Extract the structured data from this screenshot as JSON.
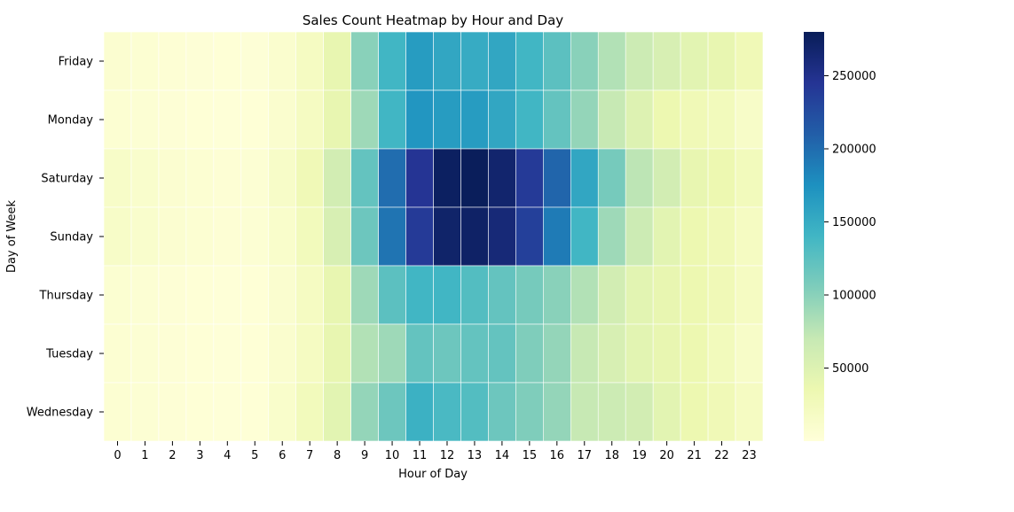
{
  "chart_data": {
    "type": "heatmap",
    "title": "Sales Count Heatmap by Hour and Day",
    "xlabel": "Hour of Day",
    "ylabel": "Day of Week",
    "x_categories": [
      "0",
      "1",
      "2",
      "3",
      "4",
      "5",
      "6",
      "7",
      "8",
      "9",
      "10",
      "11",
      "12",
      "13",
      "14",
      "15",
      "16",
      "17",
      "18",
      "19",
      "20",
      "21",
      "22",
      "23"
    ],
    "y_categories": [
      "Friday",
      "Monday",
      "Saturday",
      "Sunday",
      "Thursday",
      "Tuesday",
      "Wednesday"
    ],
    "colormap": "YlGnBu",
    "colorbar": {
      "min": 0,
      "max": 280000,
      "ticks": [
        50000,
        100000,
        150000,
        200000,
        250000
      ],
      "tick_labels": [
        "50000",
        "100000",
        "150000",
        "200000",
        "250000"
      ]
    },
    "values": [
      [
        8000,
        6000,
        4000,
        3000,
        2500,
        3000,
        10000,
        20000,
        40000,
        100000,
        140000,
        165000,
        155000,
        150000,
        155000,
        140000,
        125000,
        100000,
        80000,
        65000,
        55000,
        45000,
        40000,
        30000
      ],
      [
        6000,
        5000,
        3500,
        2500,
        2000,
        2500,
        10000,
        20000,
        40000,
        90000,
        140000,
        170000,
        165000,
        165000,
        155000,
        140000,
        120000,
        95000,
        70000,
        50000,
        35000,
        30000,
        25000,
        15000
      ],
      [
        15000,
        11000,
        8000,
        6000,
        4000,
        5000,
        15000,
        30000,
        60000,
        120000,
        200000,
        245000,
        275000,
        278000,
        268000,
        240000,
        205000,
        155000,
        110000,
        75000,
        60000,
        40000,
        35000,
        25000
      ],
      [
        15000,
        11000,
        8000,
        6000,
        4000,
        5000,
        12000,
        25000,
        55000,
        115000,
        195000,
        240000,
        270000,
        272000,
        262000,
        235000,
        190000,
        140000,
        90000,
        65000,
        45000,
        35000,
        30000,
        20000
      ],
      [
        7000,
        5000,
        3500,
        2500,
        2000,
        2500,
        9000,
        20000,
        40000,
        90000,
        125000,
        140000,
        140000,
        130000,
        120000,
        110000,
        100000,
        80000,
        60000,
        45000,
        40000,
        35000,
        30000,
        20000
      ],
      [
        6000,
        5000,
        3500,
        2500,
        2000,
        2500,
        10000,
        20000,
        40000,
        80000,
        90000,
        120000,
        115000,
        120000,
        120000,
        105000,
        95000,
        70000,
        55000,
        45000,
        40000,
        35000,
        25000,
        15000
      ],
      [
        6000,
        5000,
        3500,
        2500,
        2000,
        2500,
        12000,
        25000,
        45000,
        95000,
        115000,
        145000,
        135000,
        130000,
        115000,
        105000,
        95000,
        70000,
        65000,
        60000,
        45000,
        35000,
        30000,
        20000
      ]
    ]
  }
}
